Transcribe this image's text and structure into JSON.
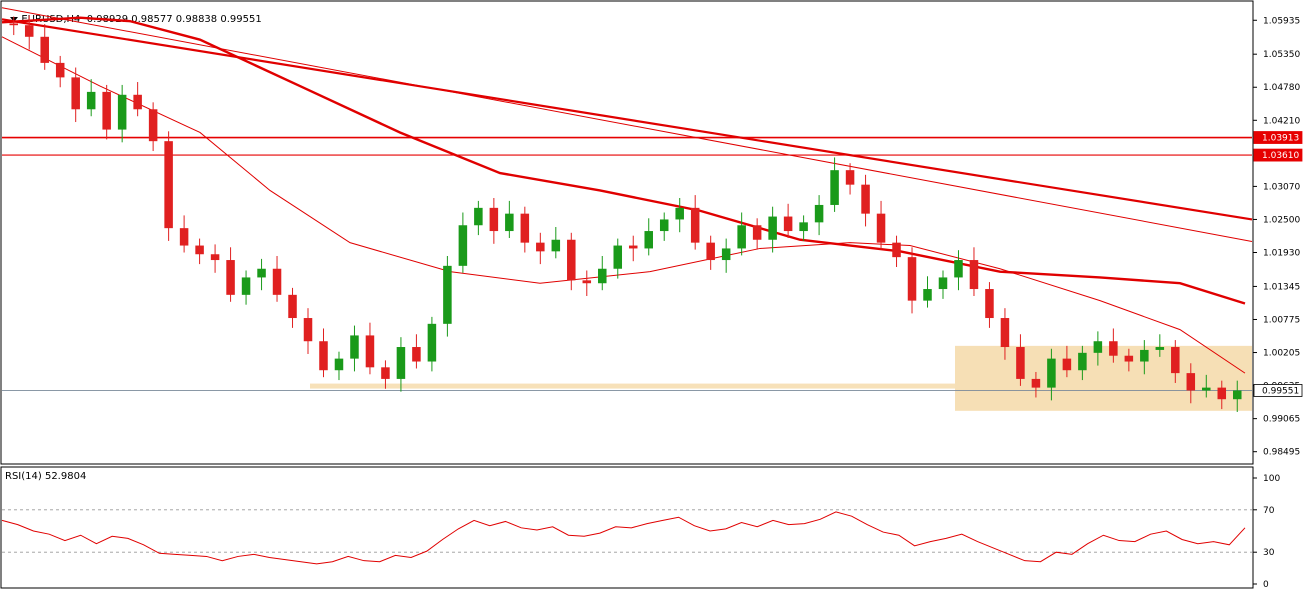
{
  "header": {
    "symbol": "EURUSD,H4",
    "ohlc": "0.98929 0.98577 0.98838 0.99551"
  },
  "price_axis": {
    "ticks": [
      "1.05935",
      "1.05350",
      "1.04780",
      "1.04210",
      "1.03070",
      "1.02500",
      "1.01930",
      "1.01345",
      "1.00775",
      "1.00205",
      "0.99635",
      "0.99065",
      "0.98495"
    ],
    "flags": [
      {
        "label": "1.03913",
        "bg": "#e60000",
        "fg": "#ffffff"
      },
      {
        "label": "1.03610",
        "bg": "#e60000",
        "fg": "#ffffff"
      },
      {
        "label": "0.99551",
        "bg": "#ffffff",
        "fg": "#000000"
      }
    ]
  },
  "rsi": {
    "label": "RSI(14) 52.9804",
    "ticks": [
      "100",
      "70",
      "30",
      "0"
    ]
  },
  "colors": {
    "bull": "#1a9a1a",
    "bear": "#e02020",
    "ma": "#e00000",
    "zone": "#f5d9a8",
    "rsi_line": "#e00000",
    "hline": "#e60000",
    "grid": "#999999"
  },
  "chart_data": {
    "type": "candlestick",
    "symbol": "EURUSD",
    "timeframe": "H4",
    "price_range": [
      0.983,
      1.0625
    ],
    "horizontal_levels": [
      1.03913,
      1.0361,
      0.99551
    ],
    "support_zone": [
      0.992,
      1.0032
    ],
    "last_close": 0.99551,
    "candles_close": [
      1.0585,
      1.0565,
      1.052,
      1.0495,
      1.044,
      1.047,
      1.0405,
      1.0465,
      1.044,
      1.0385,
      1.0235,
      1.0205,
      1.019,
      1.018,
      1.012,
      1.015,
      1.0165,
      1.012,
      1.008,
      1.004,
      0.999,
      1.001,
      1.005,
      0.9995,
      0.9975,
      1.003,
      1.0005,
      1.007,
      1.017,
      1.024,
      1.027,
      1.023,
      1.026,
      1.021,
      1.0195,
      1.0215,
      1.0145,
      1.014,
      1.0165,
      1.0205,
      1.02,
      1.023,
      1.025,
      1.027,
      1.021,
      1.018,
      1.02,
      1.024,
      1.0215,
      1.0255,
      1.023,
      1.0245,
      1.0275,
      1.0335,
      1.031,
      1.026,
      1.021,
      1.0185,
      1.011,
      1.013,
      1.015,
      1.018,
      1.013,
      1.008,
      1.003,
      0.9975,
      0.996,
      1.001,
      0.999,
      1.002,
      1.004,
      1.0015,
      1.0005,
      1.0025,
      1.003,
      0.9985,
      0.9955,
      0.996,
      0.994,
      0.9955
    ],
    "rsi_values": [
      60,
      56,
      50,
      47,
      41,
      46,
      38,
      45,
      43,
      37,
      29,
      28,
      27,
      26,
      22,
      26,
      28,
      25,
      23,
      21,
      19,
      21,
      26,
      22,
      21,
      27,
      25,
      31,
      42,
      52,
      60,
      55,
      59,
      53,
      51,
      54,
      46,
      45,
      48,
      54,
      53,
      57,
      60,
      63,
      55,
      50,
      52,
      58,
      54,
      60,
      56,
      57,
      61,
      68,
      64,
      56,
      49,
      46,
      36,
      40,
      43,
      47,
      40,
      34,
      28,
      22,
      21,
      30,
      28,
      38,
      46,
      41,
      40,
      47,
      50,
      42,
      38,
      40,
      37,
      53
    ],
    "rsi_range": [
      0,
      100
    ],
    "rsi_levels": [
      70,
      30
    ]
  }
}
